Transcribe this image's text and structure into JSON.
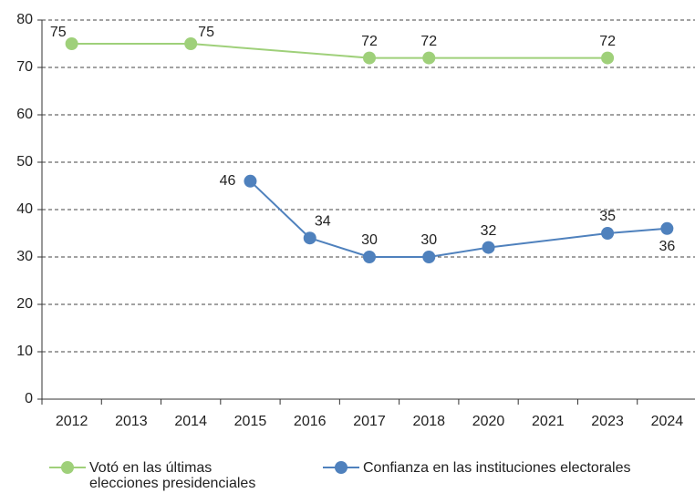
{
  "chart_data": {
    "type": "line",
    "categories": [
      "2012",
      "2013",
      "2014",
      "2015",
      "2016",
      "2017",
      "2018",
      "2020",
      "2021",
      "2023",
      "2024"
    ],
    "series": [
      {
        "name": "Votó en las últimas elecciones presidenciales",
        "color": "#9fd07a",
        "values": [
          75,
          null,
          75,
          null,
          null,
          72,
          72,
          null,
          null,
          72,
          null
        ]
      },
      {
        "name": "Confianza en las instituciones electorales",
        "color": "#4f81bd",
        "values": [
          null,
          null,
          null,
          46,
          34,
          30,
          30,
          32,
          null,
          35,
          36
        ]
      }
    ],
    "ylim": [
      0,
      80
    ],
    "yticks": [
      0,
      10,
      20,
      30,
      40,
      50,
      60,
      70,
      80
    ],
    "grid": true
  }
}
